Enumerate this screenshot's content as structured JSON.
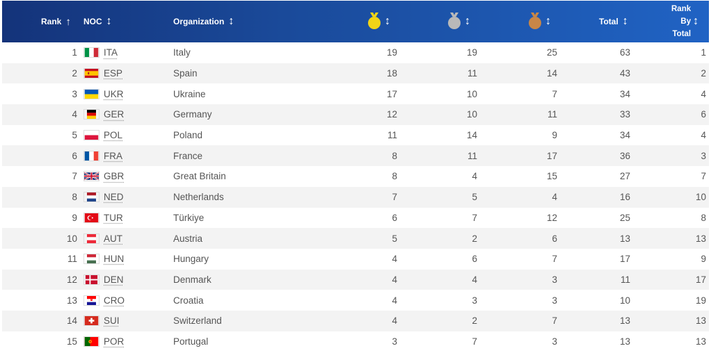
{
  "header": {
    "rank": "Rank",
    "noc": "NOC",
    "organization": "Organization",
    "total": "Total",
    "rank_by_total_l1": "Rank",
    "rank_by_total_l2": "By",
    "rank_by_total_l3": "Total",
    "sort_up_glyph": "↑",
    "sort_glyph": "↕",
    "medal_icons": [
      "gold-medal-icon",
      "silver-medal-icon",
      "bronze-medal-icon"
    ],
    "colors": {
      "header_bg": "#1a4a9a",
      "gold": "#f1d417",
      "silver": "#b9b9b9",
      "bronze": "#c88647"
    }
  },
  "rows": [
    {
      "rank": "1",
      "noc": "ITA",
      "org": "Italy",
      "gold": "19",
      "silver": "19",
      "bronze": "25",
      "total": "63",
      "rbt": "1",
      "flag": "italy-flag-icon"
    },
    {
      "rank": "2",
      "noc": "ESP",
      "org": "Spain",
      "gold": "18",
      "silver": "11",
      "bronze": "14",
      "total": "43",
      "rbt": "2",
      "flag": "spain-flag-icon"
    },
    {
      "rank": "3",
      "noc": "UKR",
      "org": "Ukraine",
      "gold": "17",
      "silver": "10",
      "bronze": "7",
      "total": "34",
      "rbt": "4",
      "flag": "ukraine-flag-icon"
    },
    {
      "rank": "4",
      "noc": "GER",
      "org": "Germany",
      "gold": "12",
      "silver": "10",
      "bronze": "11",
      "total": "33",
      "rbt": "6",
      "flag": "germany-flag-icon"
    },
    {
      "rank": "5",
      "noc": "POL",
      "org": "Poland",
      "gold": "11",
      "silver": "14",
      "bronze": "9",
      "total": "34",
      "rbt": "4",
      "flag": "poland-flag-icon"
    },
    {
      "rank": "6",
      "noc": "FRA",
      "org": "France",
      "gold": "8",
      "silver": "11",
      "bronze": "17",
      "total": "36",
      "rbt": "3",
      "flag": "france-flag-icon"
    },
    {
      "rank": "7",
      "noc": "GBR",
      "org": "Great Britain",
      "gold": "8",
      "silver": "4",
      "bronze": "15",
      "total": "27",
      "rbt": "7",
      "flag": "great-britain-flag-icon"
    },
    {
      "rank": "8",
      "noc": "NED",
      "org": "Netherlands",
      "gold": "7",
      "silver": "5",
      "bronze": "4",
      "total": "16",
      "rbt": "10",
      "flag": "netherlands-flag-icon"
    },
    {
      "rank": "9",
      "noc": "TUR",
      "org": "Türkiye",
      "gold": "6",
      "silver": "7",
      "bronze": "12",
      "total": "25",
      "rbt": "8",
      "flag": "turkiye-flag-icon"
    },
    {
      "rank": "10",
      "noc": "AUT",
      "org": "Austria",
      "gold": "5",
      "silver": "2",
      "bronze": "6",
      "total": "13",
      "rbt": "13",
      "flag": "austria-flag-icon"
    },
    {
      "rank": "11",
      "noc": "HUN",
      "org": "Hungary",
      "gold": "4",
      "silver": "6",
      "bronze": "7",
      "total": "17",
      "rbt": "9",
      "flag": "hungary-flag-icon"
    },
    {
      "rank": "12",
      "noc": "DEN",
      "org": "Denmark",
      "gold": "4",
      "silver": "4",
      "bronze": "3",
      "total": "11",
      "rbt": "17",
      "flag": "denmark-flag-icon"
    },
    {
      "rank": "13",
      "noc": "CRO",
      "org": "Croatia",
      "gold": "4",
      "silver": "3",
      "bronze": "3",
      "total": "10",
      "rbt": "19",
      "flag": "croatia-flag-icon"
    },
    {
      "rank": "14",
      "noc": "SUI",
      "org": "Switzerland",
      "gold": "4",
      "silver": "2",
      "bronze": "7",
      "total": "13",
      "rbt": "13",
      "flag": "switzerland-flag-icon"
    },
    {
      "rank": "15",
      "noc": "POR",
      "org": "Portugal",
      "gold": "3",
      "silver": "7",
      "bronze": "3",
      "total": "13",
      "rbt": "13",
      "flag": "portugal-flag-icon"
    }
  ]
}
